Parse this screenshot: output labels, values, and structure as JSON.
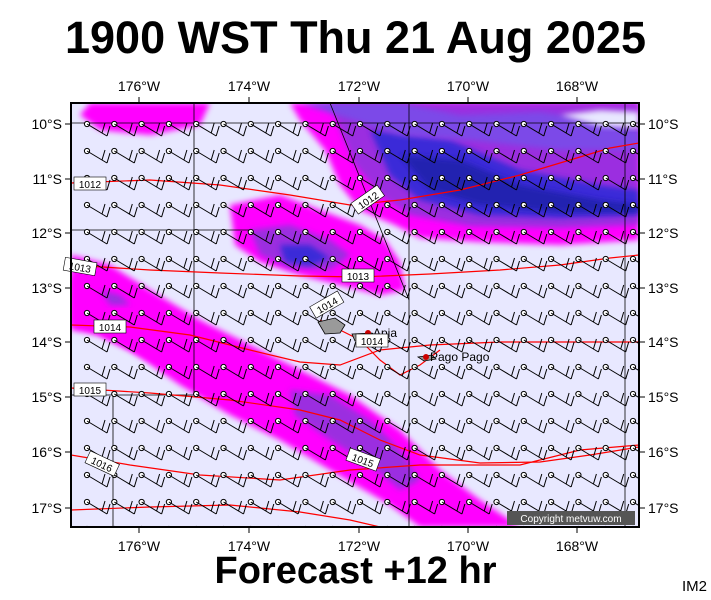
{
  "header": {
    "title": "1900 WST Thu 21 Aug 2025"
  },
  "footer": {
    "forecast": "Forecast +12 hr",
    "image_id": "IM2",
    "copyright": "Copyright metvuw.com"
  },
  "axes": {
    "lon_labels": [
      "176°W",
      "174°W",
      "172°W",
      "170°W",
      "168°W"
    ],
    "lat_labels": [
      "10°S",
      "11°S",
      "12°S",
      "13°S",
      "14°S",
      "15°S",
      "16°S",
      "17°S"
    ]
  },
  "places": [
    {
      "name": "Apia"
    },
    {
      "name": "Pago Pago"
    }
  ],
  "isobar_labels": [
    "1012",
    "1012",
    "1013",
    "1013",
    "1014",
    "1014",
    "1014",
    "1015",
    "1015",
    "1016"
  ],
  "colors": {
    "background": "#e8e8ff",
    "rain_light": "#ff00ff",
    "rain_medium": "#9b2fe0",
    "rain_heavy": "#2a2acc",
    "isobar": "#ff0000",
    "grid": "#000000"
  }
}
